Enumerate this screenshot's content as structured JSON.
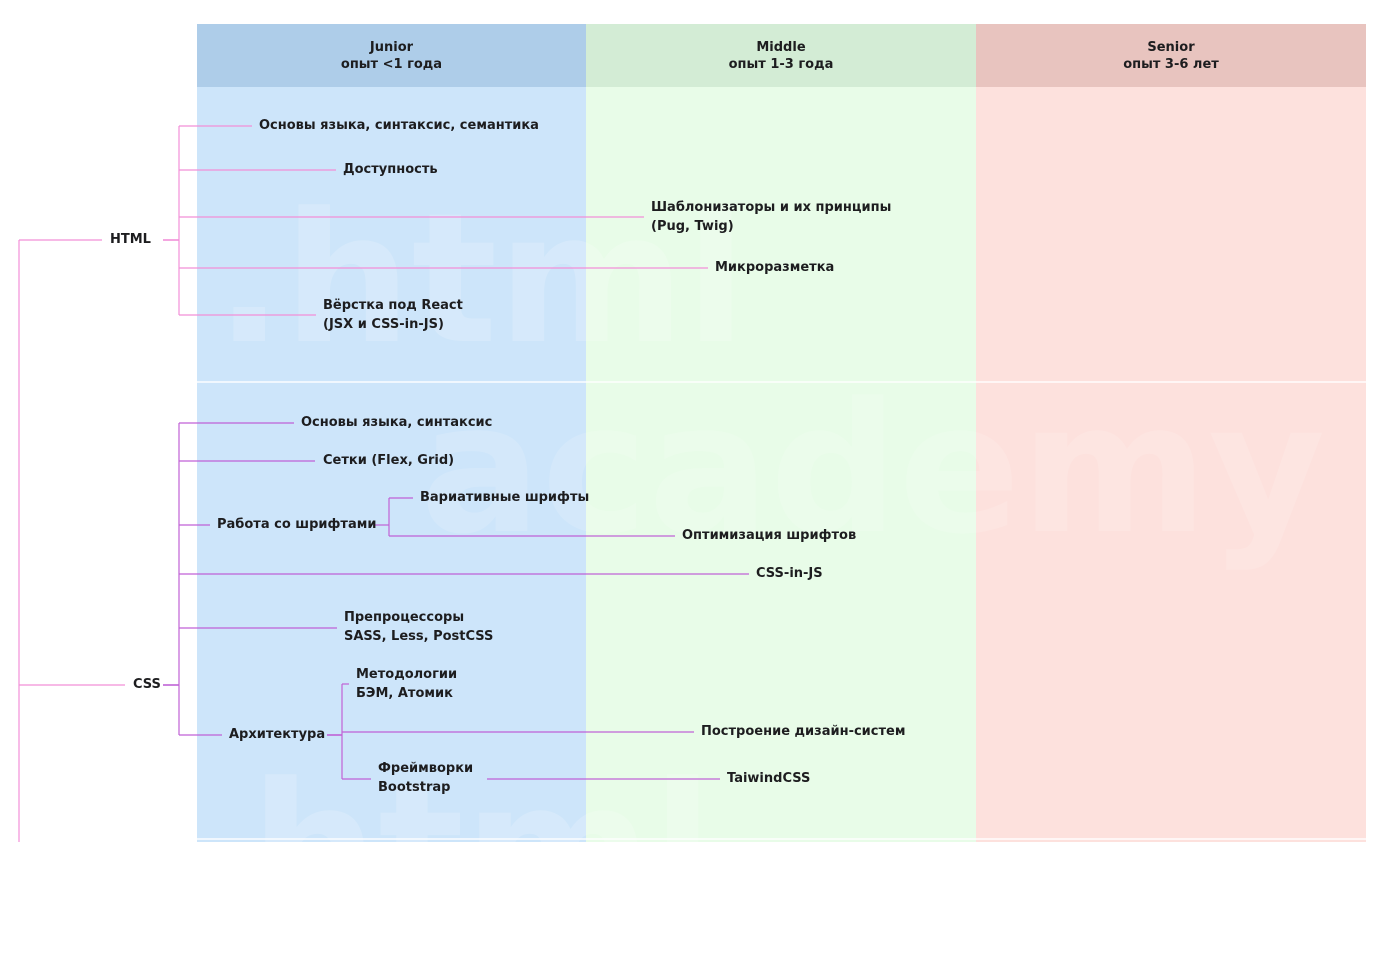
{
  "columns": [
    {
      "name": "Junior",
      "experience": "опыт <1 года",
      "head_color": "#aecde9",
      "body_color": "#cde5fa"
    },
    {
      "name": "Middle",
      "experience": "опыт 1-3 года",
      "head_color": "#d3ecd5",
      "body_color": "#e8fce8"
    },
    {
      "name": "Senior",
      "experience": "опыт 3-6 лет",
      "head_color": "#e8c4bf",
      "body_color": "#fde1dd"
    }
  ],
  "watermarks": {
    "html": ".html",
    "css": "academy",
    "js": "html"
  },
  "line_colors": {
    "html": "#f28fd8",
    "css": "#c062d6"
  },
  "html": {
    "label": "HTML",
    "items": {
      "basics": "Основы языка, синтаксис, семантика",
      "accessibility": "Доступность",
      "templating_1": "Шаблонизаторы и их принципы",
      "templating_2": "(Pug, Twig)",
      "microdata": "Микроразметка",
      "react_1": "Вёрстка под React",
      "react_2": "(JSX и CSS-in-JS)"
    }
  },
  "css": {
    "label": "CSS",
    "items": {
      "basics": "Основы языка, синтаксис",
      "grids": "Сетки (Flex, Grid)",
      "fonts": "Работа со шрифтами",
      "variable_fonts": "Вариативные шрифты",
      "font_optimization": "Оптимизация шрифтов",
      "css_in_js": "CSS-in-JS",
      "preprocessors_1": "Препроцессоры",
      "preprocessors_2": "SASS, Less, PostCSS",
      "architecture": "Архитектура",
      "methodologies_1": "Методологии",
      "methodologies_2": "БЭМ, Атомик",
      "design_systems": "Построение дизайн-систем",
      "frameworks_1": "Фреймворки",
      "frameworks_2": "Bootstrap",
      "tailwind": "TaiwindCSS"
    }
  }
}
